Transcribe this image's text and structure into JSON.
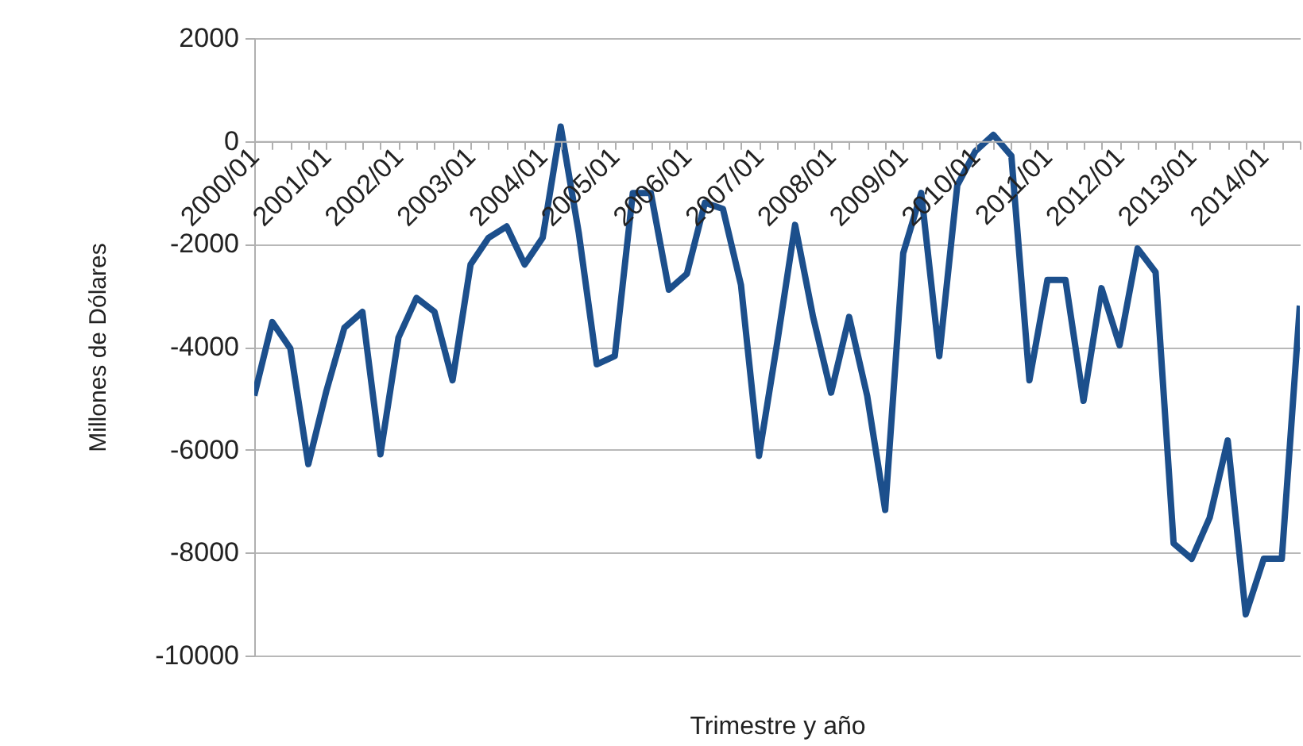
{
  "chart_data": {
    "type": "line",
    "xlabel": "Trimestre y año",
    "ylabel": "Millones de Dólares",
    "categories": [
      "2000/01",
      null,
      null,
      null,
      "2001/01",
      null,
      null,
      null,
      "2002/01",
      null,
      null,
      null,
      "2003/01",
      null,
      null,
      null,
      "2004/01",
      null,
      null,
      null,
      "2005/01",
      null,
      null,
      null,
      "2006/01",
      null,
      null,
      null,
      "2007/01",
      null,
      null,
      null,
      "2008/01",
      null,
      null,
      null,
      "2009/01",
      null,
      null,
      null,
      "2010/01",
      null,
      null,
      null,
      "2011/01",
      null,
      null,
      null,
      "2012/01",
      null,
      null,
      null,
      "2013/01",
      null,
      null,
      null,
      "2014/01",
      null,
      null
    ],
    "series": [
      {
        "color": "#1c4f8c",
        "values": [
          -4950,
          -3520,
          -4030,
          -6280,
          -4860,
          -3630,
          -3320,
          -6090,
          -3820,
          -3050,
          -3320,
          -4650,
          -2400,
          -1880,
          -1660,
          -2400,
          -1880,
          280,
          -1780,
          -4340,
          -4180,
          -1010,
          -1010,
          -2890,
          -2580,
          -1200,
          -1320,
          -2800,
          -6120,
          -3940,
          -1630,
          -3420,
          -4890,
          -3420,
          -4950,
          -7170,
          -2180,
          -1010,
          -4180,
          -860,
          -200,
          120,
          -290,
          -4650,
          -2700,
          -2700,
          -5050,
          -2860,
          -3970,
          -2090,
          -2550,
          -7820,
          -8120,
          -7320,
          -5820,
          -9200,
          -8120,
          -8120,
          -3200
        ]
      }
    ],
    "ylim": [
      -10000,
      2000
    ],
    "yticks": [
      -10000,
      -8000,
      -6000,
      -4000,
      -2000,
      0,
      2000
    ],
    "grid": "y",
    "legend": false,
    "marker": "none",
    "line_style": "solid"
  }
}
